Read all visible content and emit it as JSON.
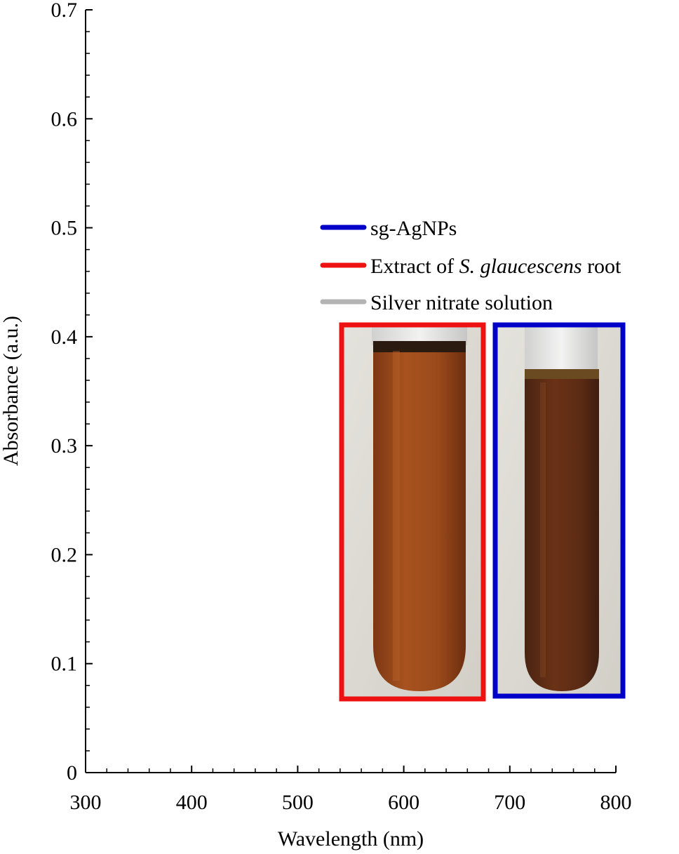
{
  "chart_data": {
    "type": "line",
    "xlabel": "Wavelength (nm)",
    "ylabel": "Absorbance (a.u.)",
    "xlim": [
      300,
      800
    ],
    "ylim": [
      0,
      0.7
    ],
    "x_ticks": [
      "300",
      "400",
      "500",
      "600",
      "700",
      "800"
    ],
    "y_ticks": [
      "0",
      "0.1",
      "0.2",
      "0.3",
      "0.4",
      "0.5",
      "0.6",
      "0.7"
    ],
    "legend_placement": "right",
    "series": [
      {
        "name": "sg-AgNPs",
        "color": "#0000c8",
        "values": []
      },
      {
        "name_parts": [
          "Extract of ",
          "S. glaucescens",
          " root"
        ],
        "color": "#ee1111",
        "values": []
      },
      {
        "name": "Silver nitrate solution",
        "color": "#b4b4b4",
        "values": []
      }
    ],
    "inset_photos": [
      {
        "frame_color": "#ee1111",
        "content": "tube-orange"
      },
      {
        "frame_color": "#0000c8",
        "content": "tube-dark"
      }
    ]
  }
}
